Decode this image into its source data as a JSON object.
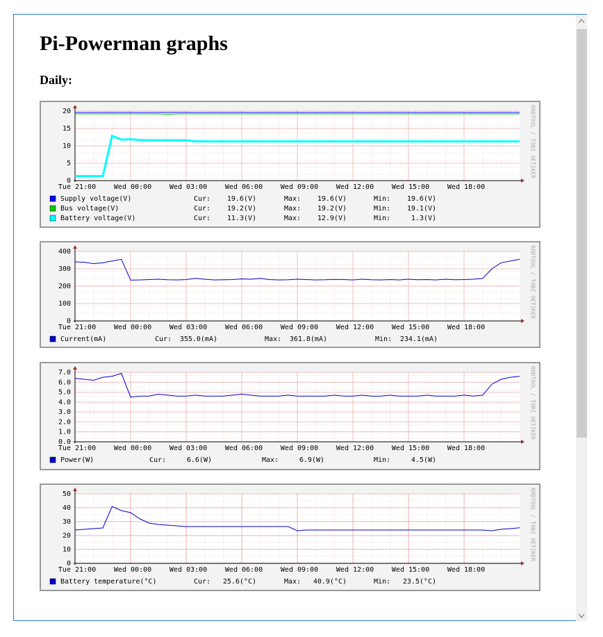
{
  "page": {
    "title": "Pi-Powerman graphs",
    "section": "Daily:"
  },
  "chart_data": [
    {
      "type": "line",
      "watermark": "RRDTOOL / TOBI OETIKER",
      "x": [
        21,
        21.5,
        22,
        22.5,
        23,
        23.5,
        24,
        24.5,
        25,
        25.5,
        26,
        26.5,
        27,
        27.5,
        28,
        28.5,
        29,
        29.5,
        30,
        30.5,
        31,
        31.5,
        32,
        32.5,
        33,
        33.5,
        34,
        34.5,
        35,
        35.5,
        36,
        36.5,
        37,
        37.5,
        38,
        38.5,
        39,
        39.5,
        40,
        40.5,
        41,
        41.5,
        42,
        42.5,
        43,
        43.5,
        44,
        44.5,
        45
      ],
      "xlim": [
        21,
        45
      ],
      "xticks": [
        {
          "value": 21,
          "label": "Tue 21:00"
        },
        {
          "value": 24,
          "label": "Wed 00:00"
        },
        {
          "value": 27,
          "label": "Wed 03:00"
        },
        {
          "value": 30,
          "label": "Wed 06:00"
        },
        {
          "value": 33,
          "label": "Wed 09:00"
        },
        {
          "value": 36,
          "label": "Wed 12:00"
        },
        {
          "value": 39,
          "label": "Wed 15:00"
        },
        {
          "value": 42,
          "label": "Wed 18:00"
        }
      ],
      "ylim": [
        0,
        20
      ],
      "yticks": [
        0,
        5,
        10,
        15,
        20
      ],
      "grid": true,
      "series": [
        {
          "name": "Supply voltage(V)",
          "color": "#0000ff",
          "line_width": 1,
          "values": [
            19.6,
            19.6,
            19.6,
            19.6,
            19.6,
            19.6,
            19.6,
            19.6,
            19.6,
            19.6,
            19.6,
            19.6,
            19.6,
            19.6,
            19.6,
            19.6,
            19.6,
            19.6,
            19.6,
            19.6,
            19.6,
            19.6,
            19.6,
            19.6,
            19.6,
            19.6,
            19.6,
            19.6,
            19.6,
            19.6,
            19.6,
            19.6,
            19.6,
            19.6,
            19.6,
            19.6,
            19.6,
            19.6,
            19.6,
            19.6,
            19.6,
            19.6,
            19.6,
            19.6,
            19.6,
            19.6,
            19.6,
            19.6,
            19.6
          ],
          "stats": [
            {
              "label": "Cur:",
              "value": "19.6(V)"
            },
            {
              "label": "Max:",
              "value": "19.6(V)"
            },
            {
              "label": "Min:",
              "value": "19.6(V)"
            }
          ]
        },
        {
          "name": "Bus voltage(V)",
          "color": "#00cc00",
          "line_width": 1,
          "values": [
            19.2,
            19.2,
            19.2,
            19.2,
            19.2,
            19.2,
            19.2,
            19.2,
            19.2,
            19.2,
            19.1,
            19.2,
            19.2,
            19.2,
            19.2,
            19.2,
            19.2,
            19.2,
            19.2,
            19.2,
            19.2,
            19.2,
            19.2,
            19.2,
            19.2,
            19.2,
            19.2,
            19.2,
            19.2,
            19.2,
            19.2,
            19.2,
            19.2,
            19.2,
            19.2,
            19.2,
            19.2,
            19.2,
            19.2,
            19.2,
            19.2,
            19.2,
            19.2,
            19.2,
            19.2,
            19.2,
            19.2,
            19.2,
            19.2
          ],
          "stats": [
            {
              "label": "Cur:",
              "value": "19.2(V)"
            },
            {
              "label": "Max:",
              "value": "19.2(V)"
            },
            {
              "label": "Min:",
              "value": "19.1(V)"
            }
          ]
        },
        {
          "name": "Battery voltage(V)",
          "color": "#00ffff",
          "line_width": 3,
          "values": [
            1.3,
            1.3,
            1.3,
            1.3,
            12.9,
            11.8,
            11.9,
            11.7,
            11.6,
            11.6,
            11.6,
            11.6,
            11.6,
            11.3,
            11.3,
            11.3,
            11.3,
            11.3,
            11.3,
            11.3,
            11.3,
            11.3,
            11.3,
            11.3,
            11.3,
            11.3,
            11.3,
            11.3,
            11.3,
            11.3,
            11.3,
            11.3,
            11.3,
            11.3,
            11.3,
            11.3,
            11.3,
            11.3,
            11.3,
            11.3,
            11.3,
            11.3,
            11.3,
            11.3,
            11.3,
            11.3,
            11.3,
            11.3,
            11.3
          ],
          "stats": [
            {
              "label": "Cur:",
              "value": "11.3(V)"
            },
            {
              "label": "Max:",
              "value": "12.9(V)"
            },
            {
              "label": "Min:",
              "value": "1.3(V)"
            }
          ]
        }
      ]
    },
    {
      "type": "line",
      "watermark": "RRDTOOL / TOBI OETIKER",
      "x": [
        21,
        21.5,
        22,
        22.5,
        23,
        23.5,
        24,
        24.5,
        25,
        25.5,
        26,
        26.5,
        27,
        27.5,
        28,
        28.5,
        29,
        29.5,
        30,
        30.5,
        31,
        31.5,
        32,
        32.5,
        33,
        33.5,
        34,
        34.5,
        35,
        35.5,
        36,
        36.5,
        37,
        37.5,
        38,
        38.5,
        39,
        39.5,
        40,
        40.5,
        41,
        41.5,
        42,
        42.5,
        43,
        43.5,
        44,
        44.5,
        45
      ],
      "xlim": [
        21,
        45
      ],
      "xticks": [
        {
          "value": 21,
          "label": "Tue 21:00"
        },
        {
          "value": 24,
          "label": "Wed 00:00"
        },
        {
          "value": 27,
          "label": "Wed 03:00"
        },
        {
          "value": 30,
          "label": "Wed 06:00"
        },
        {
          "value": 33,
          "label": "Wed 09:00"
        },
        {
          "value": 36,
          "label": "Wed 12:00"
        },
        {
          "value": 39,
          "label": "Wed 15:00"
        },
        {
          "value": 42,
          "label": "Wed 18:00"
        }
      ],
      "ylim": [
        0,
        400
      ],
      "yticks": [
        0,
        100,
        200,
        300,
        400
      ],
      "grid": true,
      "series": [
        {
          "name": "Current(mA)",
          "color": "#0000cc",
          "line_width": 1,
          "values": [
            340,
            338,
            330,
            335,
            345,
            355,
            235,
            236,
            238,
            240,
            237,
            236,
            238,
            245,
            240,
            236,
            237,
            238,
            242,
            240,
            245,
            238,
            236,
            237,
            240,
            238,
            236,
            237,
            239,
            238,
            236,
            240,
            237,
            236,
            238,
            236,
            240,
            237,
            238,
            236,
            240,
            237,
            238,
            240,
            245,
            300,
            335,
            345,
            355
          ],
          "stats": [
            {
              "label": "Cur:",
              "value": "355.0(mA)"
            },
            {
              "label": "Max:",
              "value": "361.8(mA)"
            },
            {
              "label": "Min:",
              "value": "234.1(mA)"
            }
          ]
        }
      ]
    },
    {
      "type": "line",
      "watermark": "RRDTOOL / TOBI OETIKER",
      "x": [
        21,
        21.5,
        22,
        22.5,
        23,
        23.5,
        24,
        24.5,
        25,
        25.5,
        26,
        26.5,
        27,
        27.5,
        28,
        28.5,
        29,
        29.5,
        30,
        30.5,
        31,
        31.5,
        32,
        32.5,
        33,
        33.5,
        34,
        34.5,
        35,
        35.5,
        36,
        36.5,
        37,
        37.5,
        38,
        38.5,
        39,
        39.5,
        40,
        40.5,
        41,
        41.5,
        42,
        42.5,
        43,
        43.5,
        44,
        44.5,
        45
      ],
      "xlim": [
        21,
        45
      ],
      "xticks": [
        {
          "value": 21,
          "label": "Tue 21:00"
        },
        {
          "value": 24,
          "label": "Wed 00:00"
        },
        {
          "value": 27,
          "label": "Wed 03:00"
        },
        {
          "value": 30,
          "label": "Wed 06:00"
        },
        {
          "value": 33,
          "label": "Wed 09:00"
        },
        {
          "value": 36,
          "label": "Wed 12:00"
        },
        {
          "value": 39,
          "label": "Wed 15:00"
        },
        {
          "value": 42,
          "label": "Wed 18:00"
        }
      ],
      "ylim": [
        0,
        7
      ],
      "yticks": [
        {
          "value": 0,
          "label": "0.0"
        },
        {
          "value": 1,
          "label": "1.0"
        },
        {
          "value": 2,
          "label": "2.0"
        },
        {
          "value": 3,
          "label": "3.0"
        },
        {
          "value": 4,
          "label": "4.0"
        },
        {
          "value": 5,
          "label": "5.0"
        },
        {
          "value": 6,
          "label": "6.0"
        },
        {
          "value": 7,
          "label": "7.0"
        }
      ],
      "grid": true,
      "series": [
        {
          "name": "Power(W)",
          "color": "#0000cc",
          "line_width": 1,
          "values": [
            6.4,
            6.3,
            6.2,
            6.5,
            6.6,
            6.9,
            4.5,
            4.6,
            4.6,
            4.8,
            4.7,
            4.6,
            4.6,
            4.7,
            4.6,
            4.6,
            4.6,
            4.7,
            4.8,
            4.7,
            4.6,
            4.6,
            4.6,
            4.7,
            4.6,
            4.6,
            4.6,
            4.6,
            4.7,
            4.6,
            4.6,
            4.7,
            4.6,
            4.6,
            4.7,
            4.6,
            4.6,
            4.6,
            4.7,
            4.6,
            4.6,
            4.6,
            4.7,
            4.6,
            4.7,
            5.8,
            6.3,
            6.5,
            6.6
          ],
          "stats": [
            {
              "label": "Cur:",
              "value": "6.6(W)"
            },
            {
              "label": "Max:",
              "value": "6.9(W)"
            },
            {
              "label": "Min:",
              "value": "4.5(W)"
            }
          ]
        }
      ]
    },
    {
      "type": "line",
      "watermark": "RRDTOOL / TOBI OETIKER",
      "x": [
        21,
        21.5,
        22,
        22.5,
        23,
        23.5,
        24,
        24.5,
        25,
        25.5,
        26,
        26.5,
        27,
        27.5,
        28,
        28.5,
        29,
        29.5,
        30,
        30.5,
        31,
        31.5,
        32,
        32.5,
        33,
        33.5,
        34,
        34.5,
        35,
        35.5,
        36,
        36.5,
        37,
        37.5,
        38,
        38.5,
        39,
        39.5,
        40,
        40.5,
        41,
        41.5,
        42,
        42.5,
        43,
        43.5,
        44,
        44.5,
        45
      ],
      "xlim": [
        21,
        45
      ],
      "xticks": [
        {
          "value": 21,
          "label": "Tue 21:00"
        },
        {
          "value": 24,
          "label": "Wed 00:00"
        },
        {
          "value": 27,
          "label": "Wed 03:00"
        },
        {
          "value": 30,
          "label": "Wed 06:00"
        },
        {
          "value": 33,
          "label": "Wed 09:00"
        },
        {
          "value": 36,
          "label": "Wed 12:00"
        },
        {
          "value": 39,
          "label": "Wed 15:00"
        },
        {
          "value": 42,
          "label": "Wed 18:00"
        }
      ],
      "ylim": [
        0,
        50
      ],
      "yticks": [
        0,
        10,
        20,
        30,
        40,
        50
      ],
      "grid": true,
      "series": [
        {
          "name": "Battery temperature(°C)",
          "color": "#0000cc",
          "line_width": 1,
          "values": [
            24,
            24.5,
            25,
            25.5,
            40.9,
            38,
            36.5,
            32,
            29,
            28,
            27.5,
            27,
            26.5,
            26.5,
            26.5,
            26.5,
            26.5,
            26.5,
            26.5,
            26.5,
            26.5,
            26.5,
            26.5,
            26.5,
            23.5,
            24,
            24,
            24,
            24,
            24,
            24,
            24,
            24,
            24,
            24,
            24,
            24,
            24,
            24,
            24,
            24,
            24,
            24,
            24,
            24,
            23.5,
            24.5,
            25,
            25.6
          ],
          "stats": [
            {
              "label": "Cur:",
              "value": "25.6(°C)"
            },
            {
              "label": "Max:",
              "value": "40.9(°C)"
            },
            {
              "label": "Min:",
              "value": "23.5(°C)"
            }
          ]
        }
      ]
    }
  ]
}
